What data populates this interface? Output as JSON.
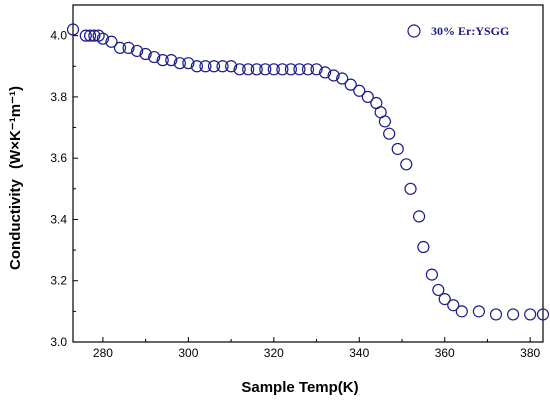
{
  "chart_data": {
    "type": "scatter",
    "xlabel": "Sample Temp(K)",
    "ylabel_main": "Conductivity",
    "ylabel_unit": "(W×K⁻¹m⁻¹)",
    "xlim": [
      273,
      383
    ],
    "ylim": [
      3.0,
      4.1
    ],
    "xticks": [
      280,
      300,
      320,
      340,
      360,
      380
    ],
    "yticks": [
      3.0,
      3.2,
      3.4,
      3.6,
      3.8,
      4.0
    ],
    "xtick_labels": [
      "280",
      "300",
      "320",
      "340",
      "360",
      "380"
    ],
    "ytick_labels": [
      "3.0",
      "3.2",
      "3.4",
      "3.6",
      "3.8",
      "4.0"
    ],
    "legend_position": "top-right",
    "color": "#1a1a8c",
    "series": [
      {
        "name": "30% Er:YSGG",
        "x": [
          273,
          276,
          277,
          278,
          279,
          280,
          282,
          284,
          286,
          288,
          290,
          292,
          294,
          296,
          298,
          300,
          302,
          304,
          306,
          308,
          310,
          312,
          314,
          316,
          318,
          320,
          322,
          324,
          326,
          328,
          330,
          332,
          334,
          336,
          338,
          340,
          342,
          344,
          345,
          346,
          347,
          349,
          351,
          352,
          354,
          355,
          357,
          358.5,
          360,
          362,
          364,
          368,
          372,
          376,
          380,
          383
        ],
        "y": [
          4.02,
          4.0,
          4.0,
          4.0,
          4.0,
          3.99,
          3.98,
          3.96,
          3.96,
          3.95,
          3.94,
          3.93,
          3.92,
          3.92,
          3.91,
          3.91,
          3.9,
          3.9,
          3.9,
          3.9,
          3.9,
          3.89,
          3.89,
          3.89,
          3.89,
          3.89,
          3.89,
          3.89,
          3.89,
          3.89,
          3.89,
          3.88,
          3.87,
          3.86,
          3.84,
          3.82,
          3.8,
          3.78,
          3.75,
          3.72,
          3.68,
          3.63,
          3.58,
          3.5,
          3.41,
          3.31,
          3.22,
          3.17,
          3.14,
          3.12,
          3.1,
          3.1,
          3.09,
          3.09,
          3.09,
          3.09
        ]
      }
    ]
  }
}
